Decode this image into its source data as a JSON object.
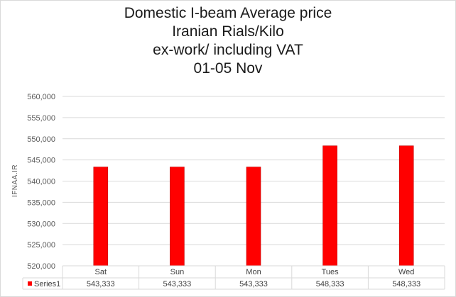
{
  "chart_data": {
    "type": "bar",
    "title_lines": [
      "Domestic I-beam Average price",
      "Iranian Rials/Kilo",
      "ex-work/ including VAT",
      "01-05 Nov"
    ],
    "categories": [
      "Sat",
      "Sun",
      "Mon",
      "Tues",
      "Wed"
    ],
    "series": [
      {
        "name": "Series1",
        "color": "#ff0000",
        "values": [
          543333,
          543333,
          543333,
          548333,
          548333
        ],
        "value_labels": [
          "543,333",
          "543,333",
          "543,333",
          "548,333",
          "548,333"
        ]
      }
    ],
    "ylim": [
      520000,
      560000
    ],
    "ytick_step": 5000,
    "ytick_labels": [
      "520,000",
      "525,000",
      "530,000",
      "535,000",
      "540,000",
      "545,000",
      "550,000",
      "555,000",
      "560,000"
    ],
    "ylabel": "IFNAA.IR",
    "xlabel": "",
    "grid": true,
    "legend": "data-table"
  },
  "colors": {
    "bar": "#ff0000",
    "bar_edge": "#c00000",
    "grid": "#d9d9d9"
  }
}
